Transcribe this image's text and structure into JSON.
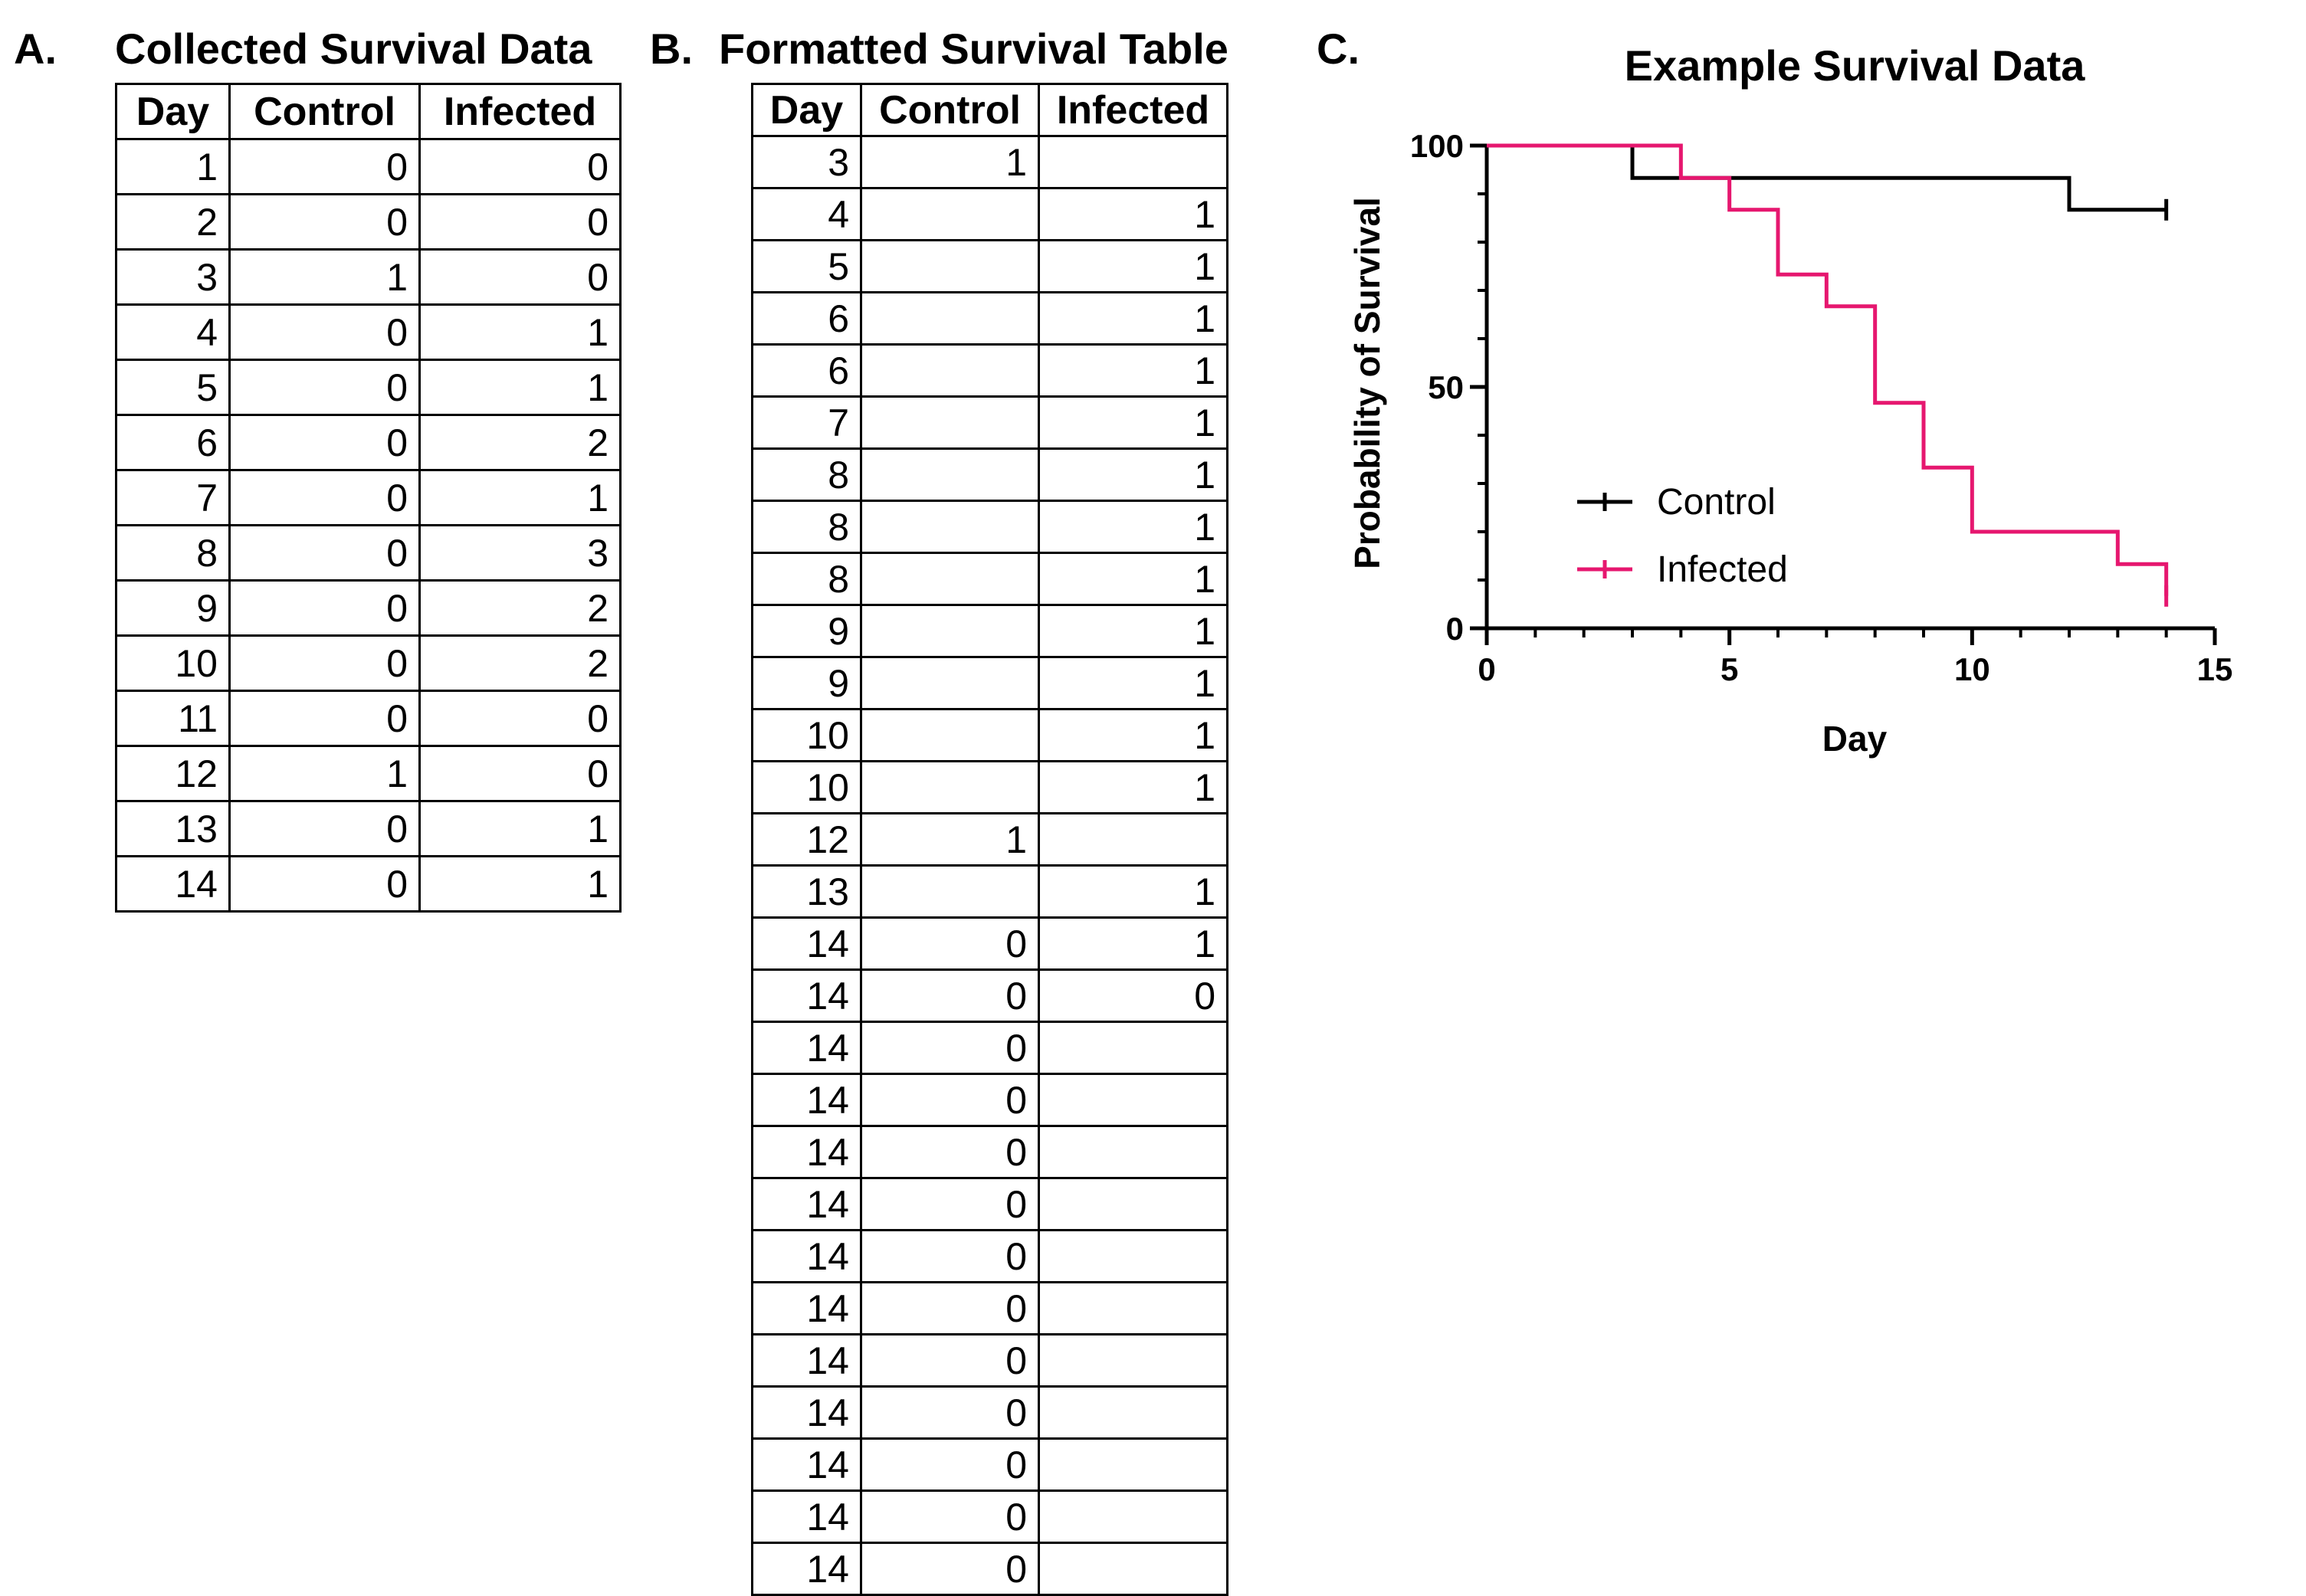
{
  "panels": {
    "a": {
      "letter": "A.",
      "title": "Collected Survival Data"
    },
    "b": {
      "letter": "B.",
      "title": "Formatted Survival Table"
    },
    "c": {
      "letter": "C."
    }
  },
  "table_a": {
    "headers": [
      "Day",
      "Control",
      "Infected"
    ],
    "rows": [
      [
        "1",
        "0",
        "0"
      ],
      [
        "2",
        "0",
        "0"
      ],
      [
        "3",
        "1",
        "0"
      ],
      [
        "4",
        "0",
        "1"
      ],
      [
        "5",
        "0",
        "1"
      ],
      [
        "6",
        "0",
        "2"
      ],
      [
        "7",
        "0",
        "1"
      ],
      [
        "8",
        "0",
        "3"
      ],
      [
        "9",
        "0",
        "2"
      ],
      [
        "10",
        "0",
        "2"
      ],
      [
        "11",
        "0",
        "0"
      ],
      [
        "12",
        "1",
        "0"
      ],
      [
        "13",
        "0",
        "1"
      ],
      [
        "14",
        "0",
        "1"
      ]
    ]
  },
  "table_b": {
    "headers": [
      "Day",
      "Control",
      "Infected"
    ],
    "rows": [
      [
        "3",
        "1",
        ""
      ],
      [
        "4",
        "",
        "1"
      ],
      [
        "5",
        "",
        "1"
      ],
      [
        "6",
        "",
        "1"
      ],
      [
        "6",
        "",
        "1"
      ],
      [
        "7",
        "",
        "1"
      ],
      [
        "8",
        "",
        "1"
      ],
      [
        "8",
        "",
        "1"
      ],
      [
        "8",
        "",
        "1"
      ],
      [
        "9",
        "",
        "1"
      ],
      [
        "9",
        "",
        "1"
      ],
      [
        "10",
        "",
        "1"
      ],
      [
        "10",
        "",
        "1"
      ],
      [
        "12",
        "1",
        ""
      ],
      [
        "13",
        "",
        "1"
      ],
      [
        "14",
        "0",
        "1"
      ],
      [
        "14",
        "0",
        "0"
      ],
      [
        "14",
        "0",
        ""
      ],
      [
        "14",
        "0",
        ""
      ],
      [
        "14",
        "0",
        ""
      ],
      [
        "14",
        "0",
        ""
      ],
      [
        "14",
        "0",
        ""
      ],
      [
        "14",
        "0",
        ""
      ],
      [
        "14",
        "0",
        ""
      ],
      [
        "14",
        "0",
        ""
      ],
      [
        "14",
        "0",
        ""
      ],
      [
        "14",
        "0",
        ""
      ],
      [
        "14",
        "0",
        ""
      ]
    ]
  },
  "chart_data": {
    "type": "line",
    "title": "Example Survival Data",
    "xlabel": "Day",
    "ylabel": "Probability of Survival",
    "xlim": [
      0,
      15
    ],
    "ylim": [
      0,
      100
    ],
    "xticks": [
      0,
      5,
      10,
      15
    ],
    "yticks": [
      0,
      50,
      100
    ],
    "grid": false,
    "legend_position": "center-left",
    "step": true,
    "series": [
      {
        "name": "Control",
        "color": "#000000",
        "x": [
          0,
          3,
          12,
          14
        ],
        "y": [
          100,
          93.3,
          86.7,
          86.7
        ],
        "censored": [
          {
            "x": 14,
            "y": 86.7
          }
        ]
      },
      {
        "name": "Infected",
        "color": "#e6176f",
        "x": [
          0,
          4,
          5,
          6,
          7,
          8,
          9,
          10,
          13,
          14
        ],
        "y": [
          100,
          93.3,
          86.7,
          73.3,
          66.7,
          46.7,
          33.3,
          20,
          13.3,
          6.7
        ],
        "censored": [
          {
            "x": 14,
            "y": 6.7
          }
        ]
      }
    ]
  }
}
